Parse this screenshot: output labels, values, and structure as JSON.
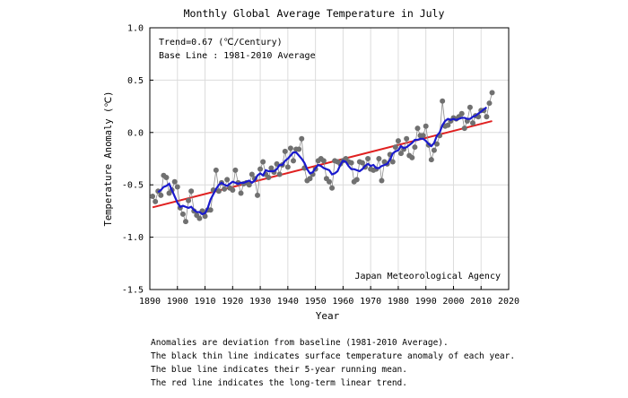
{
  "chart_data": {
    "type": "line",
    "title": "Monthly Global Average Temperature in July",
    "xlabel": "Year",
    "ylabel": "Temperature Anomaly (℃)",
    "xlim": [
      1890,
      2020
    ],
    "ylim": [
      -1.5,
      1.0
    ],
    "x_ticks": [
      "1890",
      "1900",
      "1910",
      "1920",
      "1930",
      "1940",
      "1950",
      "1960",
      "1970",
      "1980",
      "1990",
      "2000",
      "2010",
      "2020"
    ],
    "y_ticks": [
      "1.0",
      "0.5",
      "0.0",
      "-0.5",
      "-1.0",
      "-1.5"
    ],
    "grid": true,
    "annotations": {
      "trend": "Trend=0.67 (℃/Century)",
      "baseline": "Base Line : 1981-2010 Average",
      "source": "Japan Meteorological Agency"
    },
    "series": [
      {
        "name": "Annual anomaly",
        "color": "#707070",
        "x": [
          1891,
          1892,
          1893,
          1894,
          1895,
          1896,
          1897,
          1898,
          1899,
          1900,
          1901,
          1902,
          1903,
          1904,
          1905,
          1906,
          1907,
          1908,
          1909,
          1910,
          1911,
          1912,
          1913,
          1914,
          1915,
          1916,
          1917,
          1918,
          1919,
          1920,
          1921,
          1922,
          1923,
          1924,
          1925,
          1926,
          1927,
          1928,
          1929,
          1930,
          1931,
          1932,
          1933,
          1934,
          1935,
          1936,
          1937,
          1938,
          1939,
          1940,
          1941,
          1942,
          1943,
          1944,
          1945,
          1946,
          1947,
          1948,
          1949,
          1950,
          1951,
          1952,
          1953,
          1954,
          1955,
          1956,
          1957,
          1958,
          1959,
          1960,
          1961,
          1962,
          1963,
          1964,
          1965,
          1966,
          1967,
          1968,
          1969,
          1970,
          1971,
          1972,
          1973,
          1974,
          1975,
          1976,
          1977,
          1978,
          1979,
          1980,
          1981,
          1982,
          1983,
          1984,
          1985,
          1986,
          1987,
          1988,
          1989,
          1990,
          1991,
          1992,
          1993,
          1994,
          1995,
          1996,
          1997,
          1998,
          1999,
          2000,
          2001,
          2002,
          2003,
          2004,
          2005,
          2006,
          2007,
          2008,
          2009,
          2010,
          2011,
          2012,
          2013,
          2014
        ],
        "values": [
          -0.61,
          -0.66,
          -0.56,
          -0.6,
          -0.41,
          -0.43,
          -0.58,
          -0.55,
          -0.47,
          -0.52,
          -0.72,
          -0.78,
          -0.85,
          -0.65,
          -0.56,
          -0.75,
          -0.79,
          -0.82,
          -0.75,
          -0.8,
          -0.74,
          -0.74,
          -0.55,
          -0.36,
          -0.56,
          -0.48,
          -0.54,
          -0.45,
          -0.53,
          -0.55,
          -0.36,
          -0.48,
          -0.58,
          -0.49,
          -0.48,
          -0.5,
          -0.4,
          -0.44,
          -0.6,
          -0.35,
          -0.28,
          -0.4,
          -0.43,
          -0.34,
          -0.38,
          -0.3,
          -0.4,
          -0.31,
          -0.18,
          -0.33,
          -0.15,
          -0.27,
          -0.16,
          -0.16,
          -0.06,
          -0.34,
          -0.46,
          -0.44,
          -0.4,
          -0.35,
          -0.27,
          -0.25,
          -0.27,
          -0.44,
          -0.47,
          -0.53,
          -0.27,
          -0.28,
          -0.3,
          -0.27,
          -0.25,
          -0.28,
          -0.29,
          -0.47,
          -0.45,
          -0.28,
          -0.29,
          -0.33,
          -0.25,
          -0.35,
          -0.36,
          -0.35,
          -0.25,
          -0.46,
          -0.28,
          -0.3,
          -0.21,
          -0.28,
          -0.14,
          -0.08,
          -0.2,
          -0.16,
          -0.06,
          -0.22,
          -0.24,
          -0.14,
          0.04,
          -0.03,
          -0.03,
          0.06,
          -0.12,
          -0.26,
          -0.17,
          -0.11,
          -0.03,
          0.3,
          0.06,
          0.07,
          0.11,
          0.14,
          0.13,
          0.15,
          0.18,
          0.04,
          0.11,
          0.24,
          0.09,
          0.16,
          0.15,
          0.21,
          0.21,
          0.15,
          0.28,
          0.38
        ]
      },
      {
        "name": "5-year running mean",
        "color": "#1a1acd",
        "x": [
          1893,
          1894,
          1895,
          1896,
          1897,
          1898,
          1899,
          1900,
          1901,
          1902,
          1903,
          1904,
          1905,
          1906,
          1907,
          1908,
          1909,
          1910,
          1911,
          1912,
          1913,
          1914,
          1915,
          1916,
          1917,
          1918,
          1919,
          1920,
          1921,
          1922,
          1923,
          1924,
          1925,
          1926,
          1927,
          1928,
          1929,
          1930,
          1931,
          1932,
          1933,
          1934,
          1935,
          1936,
          1937,
          1938,
          1939,
          1940,
          1941,
          1942,
          1943,
          1944,
          1945,
          1946,
          1947,
          1948,
          1949,
          1950,
          1951,
          1952,
          1953,
          1954,
          1955,
          1956,
          1957,
          1958,
          1959,
          1960,
          1961,
          1962,
          1963,
          1964,
          1965,
          1966,
          1967,
          1968,
          1969,
          1970,
          1971,
          1972,
          1973,
          1974,
          1975,
          1976,
          1977,
          1978,
          1979,
          1980,
          1981,
          1982,
          1983,
          1984,
          1985,
          1986,
          1987,
          1988,
          1989,
          1990,
          1991,
          1992,
          1993,
          1994,
          1995,
          1996,
          1997,
          1998,
          1999,
          2000,
          2001,
          2002,
          2003,
          2004,
          2005,
          2006,
          2007,
          2008,
          2009,
          2010,
          2011,
          2012
        ],
        "values": [
          -0.57,
          -0.55,
          -0.52,
          -0.51,
          -0.49,
          -0.55,
          -0.61,
          -0.67,
          -0.71,
          -0.7,
          -0.71,
          -0.72,
          -0.71,
          -0.74,
          -0.76,
          -0.76,
          -0.78,
          -0.77,
          -0.72,
          -0.64,
          -0.59,
          -0.54,
          -0.5,
          -0.48,
          -0.5,
          -0.51,
          -0.49,
          -0.47,
          -0.48,
          -0.49,
          -0.48,
          -0.48,
          -0.47,
          -0.46,
          -0.48,
          -0.46,
          -0.41,
          -0.39,
          -0.41,
          -0.36,
          -0.37,
          -0.37,
          -0.37,
          -0.35,
          -0.31,
          -0.31,
          -0.27,
          -0.25,
          -0.22,
          -0.19,
          -0.19,
          -0.22,
          -0.25,
          -0.29,
          -0.35,
          -0.39,
          -0.38,
          -0.34,
          -0.31,
          -0.32,
          -0.34,
          -0.35,
          -0.36,
          -0.4,
          -0.39,
          -0.37,
          -0.31,
          -0.27,
          -0.28,
          -0.32,
          -0.35,
          -0.35,
          -0.36,
          -0.37,
          -0.35,
          -0.32,
          -0.3,
          -0.32,
          -0.31,
          -0.34,
          -0.34,
          -0.32,
          -0.31,
          -0.3,
          -0.26,
          -0.2,
          -0.18,
          -0.17,
          -0.13,
          -0.15,
          -0.14,
          -0.12,
          -0.1,
          -0.07,
          -0.07,
          -0.06,
          -0.06,
          -0.08,
          -0.11,
          -0.13,
          -0.1,
          -0.03,
          0.0,
          0.07,
          0.11,
          0.13,
          0.12,
          0.13,
          0.12,
          0.13,
          0.14,
          0.14,
          0.13,
          0.13,
          0.15,
          0.16,
          0.18,
          0.2,
          0.22,
          0.24
        ]
      },
      {
        "name": "Long-term linear trend",
        "color": "#e02020",
        "x": [
          1891,
          2014
        ],
        "values": [
          -0.715,
          0.109
        ]
      }
    ]
  },
  "captions": [
    "Anomalies are deviation from baseline (1981-2010 Average).",
    "The black thin line indicates surface temperature anomaly of each year.",
    "The blue line indicates their 5-year running mean.",
    "The red line indicates the long-term linear trend."
  ]
}
